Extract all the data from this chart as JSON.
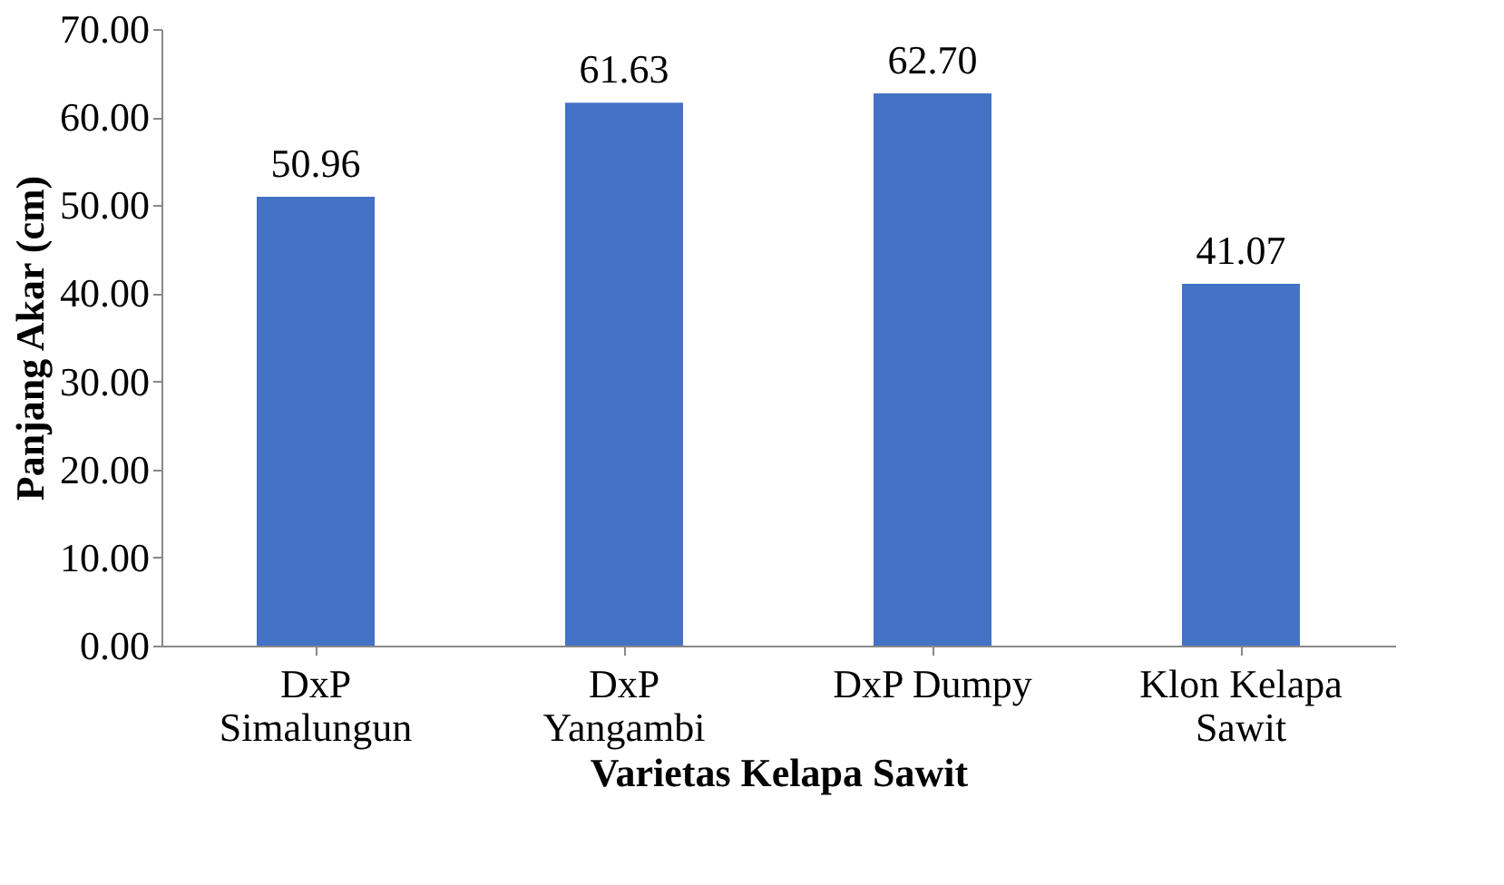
{
  "chart_data": {
    "type": "bar",
    "categories": [
      "DxP\nSimalungun",
      "DxP\nYangambi",
      "DxP Dumpy",
      "Klon Kelapa\nSawit"
    ],
    "values": [
      50.96,
      61.63,
      62.7,
      41.07
    ],
    "value_labels": [
      "50.96",
      "61.63",
      "62.70",
      "41.07"
    ],
    "color": "#4472c4",
    "xlabel": "Varietas Kelapa Sawit",
    "ylabel": "Panjang Akar (cm)",
    "ylim": [
      0,
      70
    ],
    "yticks": [
      {
        "value": 0,
        "label": "0.00"
      },
      {
        "value": 10,
        "label": "10.00"
      },
      {
        "value": 20,
        "label": "20.00"
      },
      {
        "value": 30,
        "label": "30.00"
      },
      {
        "value": 40,
        "label": "40.00"
      },
      {
        "value": 50,
        "label": "50.00"
      },
      {
        "value": 60,
        "label": "60.00"
      },
      {
        "value": 70,
        "label": "70.00"
      }
    ],
    "grid": false
  }
}
